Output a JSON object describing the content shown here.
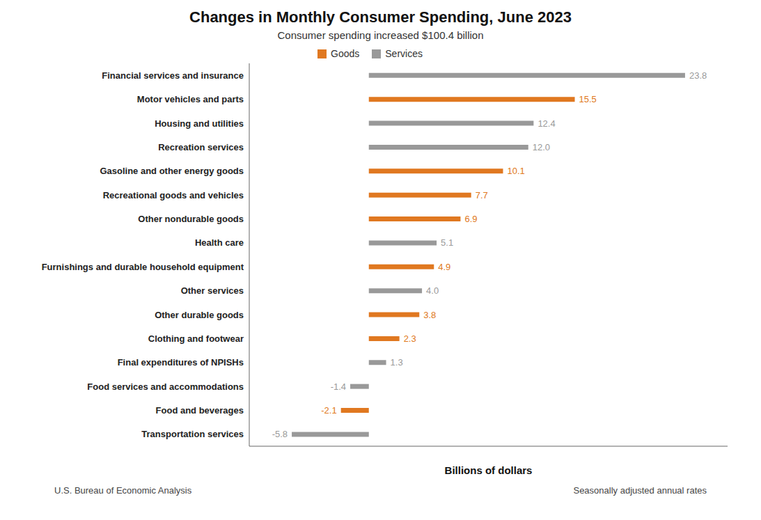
{
  "chart_data": {
    "type": "bar",
    "orientation": "horizontal",
    "title": "Changes in Monthly Consumer Spending, June 2023",
    "subtitle": "Consumer spending increased $100.4 billion",
    "xlabel": "Billions of dollars",
    "annotations": [
      "U.S. Bureau of Economic Analysis",
      "Seasonally adjusted annual rates"
    ],
    "categories": [
      "Financial services and insurance",
      "Motor vehicles and parts",
      "Housing and utilities",
      "Recreation services",
      "Gasoline and other energy goods",
      "Recreational goods and vehicles",
      "Other nondurable goods",
      "Health care",
      "Furnishings and durable household equipment",
      "Other services",
      "Other durable goods",
      "Clothing and footwear",
      "Final expenditures of NPISHs",
      "Food services and accommodations",
      "Food and beverages",
      "Transportation services"
    ],
    "series": [
      {
        "name": "Goods",
        "color": "#E07820",
        "values": [
          null,
          15.5,
          null,
          null,
          10.1,
          7.7,
          6.9,
          null,
          4.9,
          null,
          3.8,
          2.3,
          null,
          null,
          -2.1,
          null
        ],
        "value_labels": [
          null,
          "15.5",
          null,
          null,
          "10.1",
          "7.7",
          "6.9",
          null,
          "4.9",
          null,
          "3.8",
          "2.3",
          null,
          null,
          "-2.1",
          null
        ]
      },
      {
        "name": "Services",
        "color": "#999999",
        "values": [
          23.8,
          null,
          12.4,
          12.0,
          null,
          null,
          null,
          5.1,
          null,
          4.0,
          null,
          null,
          1.3,
          -1.4,
          null,
          -5.8
        ],
        "value_labels": [
          "23.8",
          null,
          "12.4",
          "12.0",
          null,
          null,
          null,
          "5.1",
          null,
          "4.0",
          null,
          null,
          "1.3",
          "-1.4",
          null,
          "-5.8"
        ]
      }
    ],
    "xlim": [
      -9,
      27
    ],
    "data_labels": true,
    "tick_labels": "y",
    "legend": "top"
  }
}
